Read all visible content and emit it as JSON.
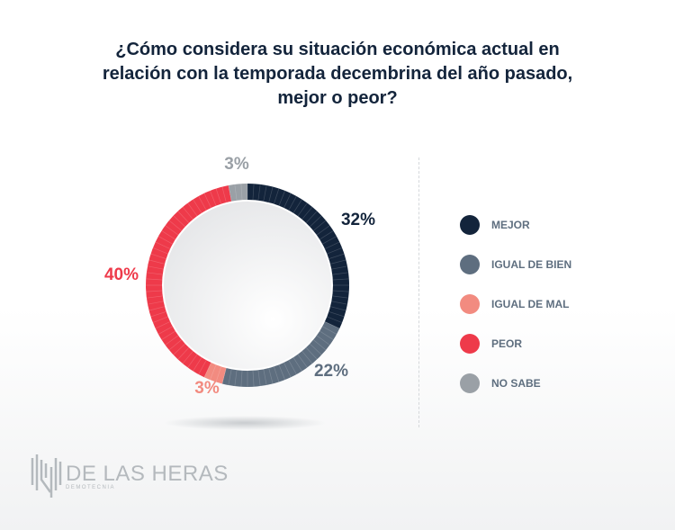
{
  "title_lines": [
    "¿Cómo considera su situación económica actual en",
    "relación con la temporada decembrina del año pasado,",
    "mejor o peor?"
  ],
  "chart_data": {
    "type": "pie",
    "subtype": "donut",
    "title": "¿Cómo considera su situación económica actual en relación con la temporada decembrina del año pasado, mejor o peor?",
    "categories": [
      "MEJOR",
      "IGUAL DE BIEN",
      "IGUAL DE MAL",
      "PEOR",
      "NO SABE"
    ],
    "values": [
      32,
      22,
      3,
      40,
      3
    ],
    "labels": [
      "32%",
      "22%",
      "3%",
      "40%",
      "3%"
    ],
    "colors": [
      "#13243b",
      "#5e6e7f",
      "#f28b80",
      "#ee3a4a",
      "#9aa0a6"
    ],
    "legend_position": "right"
  },
  "logo": {
    "name": "DE LAS HERAS",
    "sub": "DEMOTECNIA"
  }
}
